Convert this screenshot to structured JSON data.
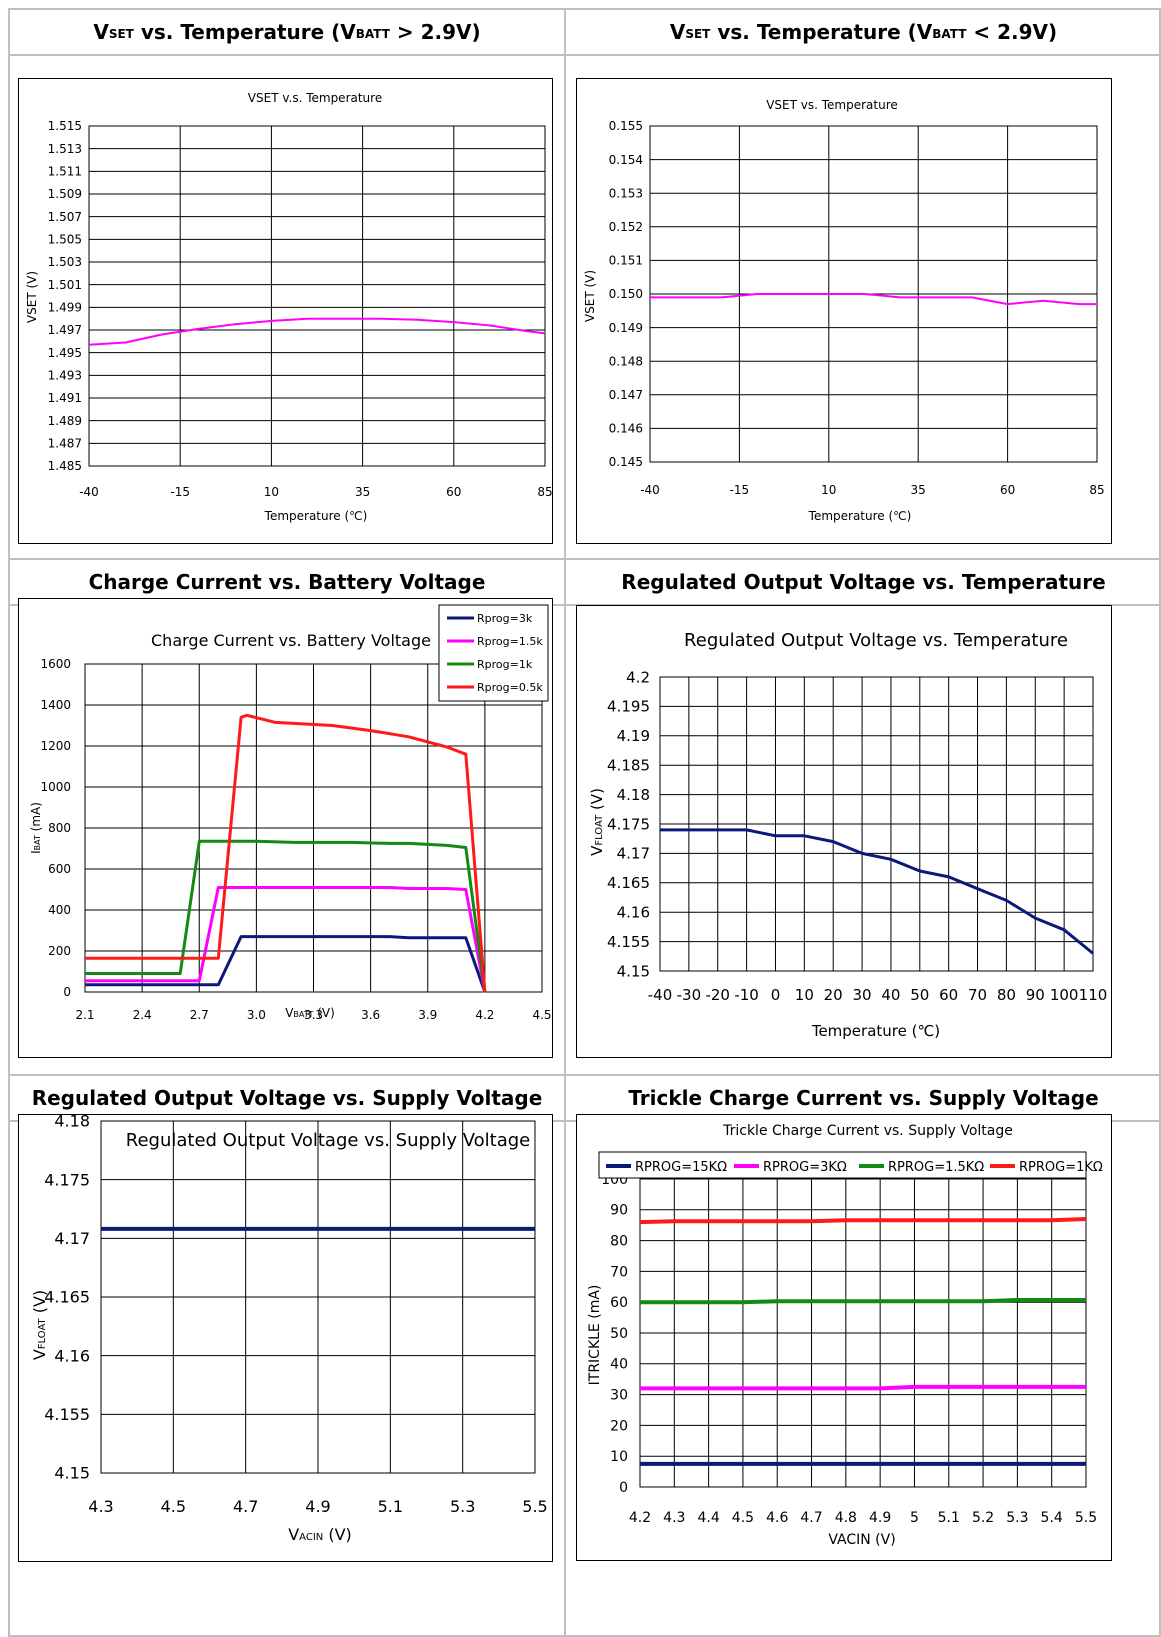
{
  "headers": [
    {
      "pre": "V",
      "sub": "SET",
      "mid": " vs. Temperature (V",
      "sub2": "BATT",
      "post": " > 2.9V)"
    },
    {
      "pre": "V",
      "sub": "SET",
      "mid": " vs. Temperature (V",
      "sub2": "BATT",
      "post": " < 2.9V)"
    },
    {
      "text": "Charge Current vs. Battery Voltage"
    },
    {
      "text": "Regulated Output Voltage vs. Temperature"
    },
    {
      "text": "Regulated Output Voltage vs. Supply Voltage"
    },
    {
      "text": "Trickle Charge Current vs. Supply Voltage"
    }
  ],
  "colors": {
    "navy": "#0b1a7a",
    "magenta": "#ff00ff",
    "green": "#138a13",
    "red": "#ff1a1a"
  },
  "chart_data": [
    {
      "type": "line",
      "title": "VSET v.s. Temperature",
      "xlabel": "Temperature (℃)",
      "ylabel": "VSET (V)",
      "xlim": [
        -40,
        85
      ],
      "ylim": [
        1.485,
        1.515
      ],
      "xticks": [
        "-40",
        "-15",
        "10",
        "35",
        "60",
        "85"
      ],
      "yticks": [
        "1.485",
        "1.487",
        "1.489",
        "1.491",
        "1.493",
        "1.495",
        "1.497",
        "1.499",
        "1.501",
        "1.503",
        "1.505",
        "1.507",
        "1.509",
        "1.511",
        "1.513",
        "1.515"
      ],
      "series": [
        {
          "color": "#ff00ff",
          "x": [
            -40,
            -30,
            -20,
            -10,
            0,
            10,
            20,
            30,
            40,
            50,
            60,
            70,
            80,
            85
          ],
          "y": [
            1.4957,
            1.4959,
            1.4966,
            1.4971,
            1.4975,
            1.4978,
            1.498,
            1.498,
            1.498,
            1.4979,
            1.4977,
            1.4974,
            1.4969,
            1.4967
          ]
        }
      ]
    },
    {
      "type": "line",
      "title": "VSET vs. Temperature",
      "xlabel": "Temperature (℃)",
      "ylabel": "VSET (V)",
      "xlim": [
        -40,
        85
      ],
      "ylim": [
        0.145,
        0.155
      ],
      "xticks": [
        "-40",
        "-15",
        "10",
        "35",
        "60",
        "85"
      ],
      "yticks": [
        "0.145",
        "0.146",
        "0.147",
        "0.148",
        "0.149",
        "0.150",
        "0.151",
        "0.152",
        "0.153",
        "0.154",
        "0.155"
      ],
      "series": [
        {
          "color": "#ff00ff",
          "x": [
            -40,
            -30,
            -20,
            -10,
            0,
            10,
            20,
            30,
            40,
            50,
            60,
            70,
            80,
            85
          ],
          "y": [
            0.1499,
            0.1499,
            0.1499,
            0.15,
            0.15,
            0.15,
            0.15,
            0.1499,
            0.1499,
            0.1499,
            0.1497,
            0.1498,
            0.1497,
            0.1497
          ]
        }
      ]
    },
    {
      "type": "line",
      "title": "Charge Current vs. Battery Voltage",
      "xlabel_main": "V",
      "xlabel_sub": "BATT",
      "xlabel_unit": " (V)",
      "ylabel_main": "I",
      "ylabel_sub": "BAT",
      "ylabel_unit": " (mA)",
      "xlim": [
        2.1,
        4.5
      ],
      "ylim": [
        0,
        1600
      ],
      "xticks": [
        "2.1",
        "2.4",
        "2.7",
        "3.0",
        "3.3",
        "3.6",
        "3.9",
        "4.2",
        "4.5"
      ],
      "yticks": [
        "0",
        "200",
        "400",
        "600",
        "800",
        "1000",
        "1200",
        "1400",
        "1600"
      ],
      "legend": [
        "Rprog=3k",
        "Rprog=1.5k",
        "Rprog=1k",
        "Rprog=0.5k"
      ],
      "series": [
        {
          "name": "Rprog=3k",
          "color": "#0b1a7a",
          "x": [
            2.1,
            2.8,
            2.92,
            3.2,
            3.5,
            3.7,
            3.8,
            4.0,
            4.1,
            4.2
          ],
          "y": [
            35,
            35,
            270,
            270,
            270,
            270,
            265,
            265,
            265,
            0
          ]
        },
        {
          "name": "Rprog=1.5k",
          "color": "#ff00ff",
          "x": [
            2.1,
            2.7,
            2.8,
            3.2,
            3.5,
            3.7,
            3.8,
            4.0,
            4.1,
            4.2
          ],
          "y": [
            55,
            55,
            510,
            510,
            510,
            510,
            505,
            505,
            500,
            0
          ]
        },
        {
          "name": "Rprog=1k",
          "color": "#138a13",
          "x": [
            2.1,
            2.6,
            2.7,
            3.0,
            3.2,
            3.5,
            3.7,
            3.8,
            4.0,
            4.1,
            4.2
          ],
          "y": [
            90,
            90,
            735,
            735,
            730,
            730,
            725,
            725,
            715,
            705,
            0
          ]
        },
        {
          "name": "Rprog=0.5k",
          "color": "#ff1a1a",
          "x": [
            2.1,
            2.8,
            2.92,
            2.95,
            3.1,
            3.4,
            3.6,
            3.8,
            4.0,
            4.1,
            4.2
          ],
          "y": [
            165,
            165,
            1340,
            1350,
            1315,
            1300,
            1275,
            1245,
            1195,
            1160,
            0
          ]
        }
      ]
    },
    {
      "type": "line",
      "title": "Regulated Output Voltage vs. Temperature",
      "xlabel": "Temperature (℃)",
      "ylabel_main": "V",
      "ylabel_sub": "FLOAT",
      "ylabel_unit": " (V)",
      "xlim": [
        -40,
        110
      ],
      "ylim": [
        4.15,
        4.2
      ],
      "xticks": [
        "-40",
        "-30",
        "-20",
        "-10",
        "0",
        "10",
        "20",
        "30",
        "40",
        "50",
        "60",
        "70",
        "80",
        "90",
        "100",
        "110"
      ],
      "yticks": [
        "4.15",
        "4.155",
        "4.16",
        "4.165",
        "4.17",
        "4.175",
        "4.18",
        "4.185",
        "4.19",
        "4.195",
        "4.2"
      ],
      "series": [
        {
          "color": "#0b1a7a",
          "x": [
            -40,
            -30,
            -20,
            -10,
            0,
            10,
            20,
            30,
            40,
            50,
            60,
            70,
            80,
            90,
            100,
            110
          ],
          "y": [
            4.174,
            4.174,
            4.174,
            4.174,
            4.173,
            4.173,
            4.172,
            4.17,
            4.169,
            4.167,
            4.166,
            4.164,
            4.162,
            4.159,
            4.157,
            4.153
          ]
        }
      ]
    },
    {
      "type": "line",
      "title": "Regulated Output Voltage vs. Supply Voltage",
      "xlabel_main": "V",
      "xlabel_sub": "ACIN",
      "xlabel_unit": " (V)",
      "ylabel_main": "V",
      "ylabel_sub": "FLOAT",
      "ylabel_unit": " (V)",
      "xlim": [
        4.3,
        5.5
      ],
      "ylim": [
        4.15,
        4.18
      ],
      "xticks": [
        "4.3",
        "4.5",
        "4.7",
        "4.9",
        "5.1",
        "5.3",
        "5.5"
      ],
      "yticks": [
        "4.15",
        "4.155",
        "4.16",
        "4.165",
        "4.17",
        "4.175",
        "4.18"
      ],
      "series": [
        {
          "color": "#0b1a7a",
          "x": [
            4.3,
            4.5,
            4.7,
            4.9,
            5.1,
            5.3,
            5.5
          ],
          "y": [
            4.1708,
            4.1708,
            4.1708,
            4.1708,
            4.1708,
            4.1708,
            4.1708
          ]
        }
      ]
    },
    {
      "type": "line",
      "title": "Trickle Charge Current vs. Supply Voltage",
      "xlabel": "VACIN (V)",
      "ylabel": "ITRICKLE (mA)",
      "xlim": [
        4.2,
        5.5
      ],
      "ylim": [
        0,
        100
      ],
      "xticks": [
        "4.2",
        "4.3",
        "4.4",
        "4.5",
        "4.6",
        "4.7",
        "4.8",
        "4.9",
        "5",
        "5.1",
        "5.2",
        "5.3",
        "5.4",
        "5.5"
      ],
      "yticks": [
        "0",
        "10",
        "20",
        "30",
        "40",
        "50",
        "60",
        "70",
        "80",
        "90",
        "100"
      ],
      "legend": [
        "RPROG=15KΩ",
        "RPROG=3KΩ",
        "RPROG=1.5KΩ",
        "RPROG=1KΩ"
      ],
      "series": [
        {
          "name": "RPROG=15KΩ",
          "color": "#0b1a7a",
          "x": [
            4.2,
            4.3,
            4.4,
            4.5,
            4.6,
            4.7,
            4.8,
            4.9,
            5,
            5.1,
            5.2,
            5.3,
            5.4,
            5.5
          ],
          "y": [
            7.5,
            7.5,
            7.5,
            7.5,
            7.5,
            7.5,
            7.5,
            7.5,
            7.5,
            7.5,
            7.5,
            7.5,
            7.5,
            7.5
          ]
        },
        {
          "name": "RPROG=3KΩ",
          "color": "#ff00ff",
          "x": [
            4.2,
            4.3,
            4.4,
            4.5,
            4.6,
            4.7,
            4.8,
            4.9,
            5,
            5.1,
            5.2,
            5.3,
            5.4,
            5.5
          ],
          "y": [
            32,
            32,
            32,
            32,
            32,
            32,
            32,
            32,
            32.5,
            32.5,
            32.5,
            32.5,
            32.5,
            32.5
          ]
        },
        {
          "name": "RPROG=1.5KΩ",
          "color": "#138a13",
          "x": [
            4.2,
            4.3,
            4.4,
            4.5,
            4.6,
            4.7,
            4.8,
            4.9,
            5,
            5.1,
            5.2,
            5.3,
            5.4,
            5.5
          ],
          "y": [
            60,
            60,
            60,
            60,
            60.3,
            60.3,
            60.3,
            60.3,
            60.3,
            60.3,
            60.3,
            60.7,
            60.7,
            60.7
          ]
        },
        {
          "name": "RPROG=1KΩ",
          "color": "#ff1a1a",
          "x": [
            4.2,
            4.3,
            4.4,
            4.5,
            4.6,
            4.7,
            4.8,
            4.9,
            5,
            5.1,
            5.2,
            5.3,
            5.4,
            5.5
          ],
          "y": [
            86,
            86.3,
            86.3,
            86.3,
            86.3,
            86.3,
            86.6,
            86.6,
            86.6,
            86.6,
            86.6,
            86.6,
            86.6,
            87
          ]
        }
      ]
    }
  ]
}
